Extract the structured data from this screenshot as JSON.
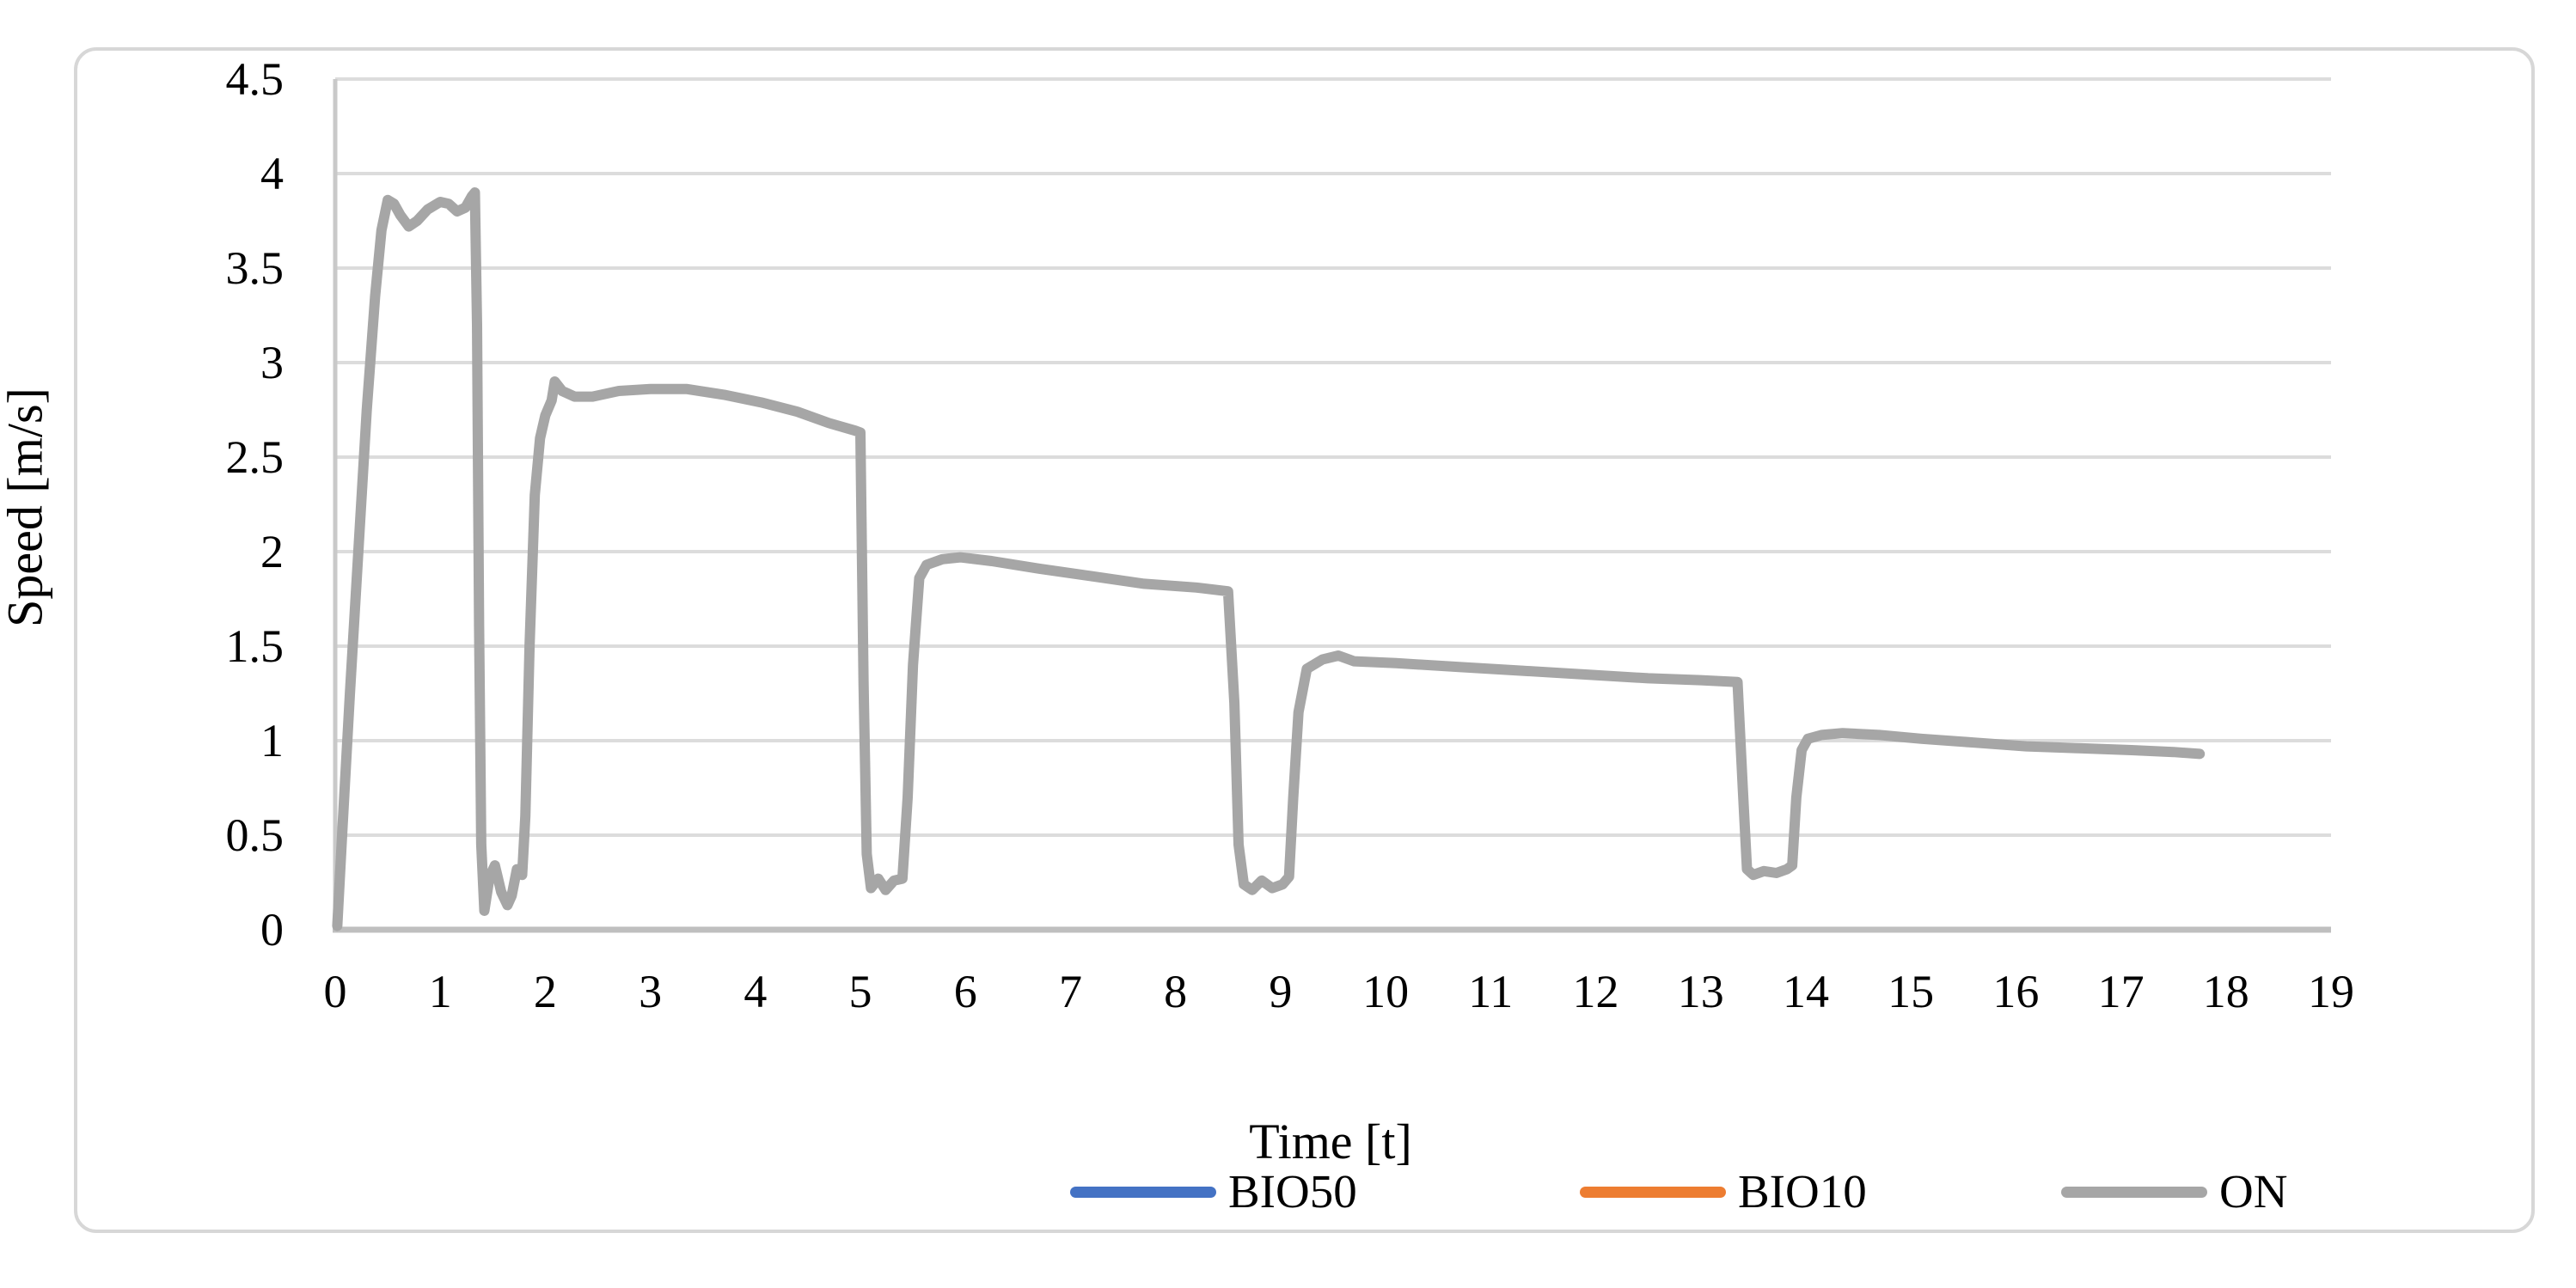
{
  "figure": {
    "background": "#ffffff",
    "border_color": "#d7d7d7"
  },
  "chart_data": {
    "type": "line",
    "title": "",
    "xlabel": "Time [t]",
    "ylabel": "Speed [m/s]",
    "xlim": [
      0,
      19
    ],
    "ylim": [
      0,
      4.5
    ],
    "grid": "horizontal",
    "legend_position": "bottom",
    "x_ticks": [
      "0",
      "1",
      "2",
      "3",
      "4",
      "5",
      "6",
      "7",
      "8",
      "9",
      "10",
      "11",
      "12",
      "13",
      "14",
      "15",
      "16",
      "17",
      "18",
      "19"
    ],
    "y_ticks": [
      "0",
      "0.5",
      "1",
      "1.5",
      "2",
      "2.5",
      "3",
      "3.5",
      "4",
      "4.5"
    ],
    "axis_color": "#bfbfbf",
    "gridline_color": "#dcdcdc",
    "legend": [
      {
        "label": "BIO50",
        "color": "#4472C4"
      },
      {
        "label": "BIO10",
        "color": "#ED7D31"
      },
      {
        "label": "ON",
        "color": "#A6A6A6"
      }
    ],
    "series": [
      {
        "name": "BIO50",
        "color": "#4472C4",
        "points": []
      },
      {
        "name": "BIO10",
        "color": "#ED7D31",
        "points": []
      },
      {
        "name": "ON",
        "color": "#A6A6A6",
        "points": [
          [
            0.02,
            0.02
          ],
          [
            0.07,
            0.55
          ],
          [
            0.14,
            1.25
          ],
          [
            0.22,
            2.0
          ],
          [
            0.3,
            2.75
          ],
          [
            0.38,
            3.35
          ],
          [
            0.44,
            3.7
          ],
          [
            0.5,
            3.86
          ],
          [
            0.56,
            3.84
          ],
          [
            0.62,
            3.78
          ],
          [
            0.7,
            3.72
          ],
          [
            0.78,
            3.75
          ],
          [
            0.88,
            3.81
          ],
          [
            1.0,
            3.85
          ],
          [
            1.08,
            3.84
          ],
          [
            1.16,
            3.8
          ],
          [
            1.24,
            3.82
          ],
          [
            1.3,
            3.88
          ],
          [
            1.33,
            3.9
          ],
          [
            1.35,
            3.2
          ],
          [
            1.37,
            1.6
          ],
          [
            1.39,
            0.45
          ],
          [
            1.42,
            0.1
          ],
          [
            1.47,
            0.28
          ],
          [
            1.52,
            0.34
          ],
          [
            1.58,
            0.2
          ],
          [
            1.64,
            0.13
          ],
          [
            1.68,
            0.18
          ],
          [
            1.73,
            0.32
          ],
          [
            1.78,
            0.29
          ],
          [
            1.81,
            0.6
          ],
          [
            1.85,
            1.5
          ],
          [
            1.9,
            2.3
          ],
          [
            1.95,
            2.6
          ],
          [
            2.0,
            2.72
          ],
          [
            2.06,
            2.8
          ],
          [
            2.09,
            2.9
          ],
          [
            2.16,
            2.85
          ],
          [
            2.28,
            2.82
          ],
          [
            2.45,
            2.82
          ],
          [
            2.7,
            2.85
          ],
          [
            3.0,
            2.86
          ],
          [
            3.35,
            2.86
          ],
          [
            3.7,
            2.83
          ],
          [
            4.05,
            2.79
          ],
          [
            4.4,
            2.74
          ],
          [
            4.7,
            2.68
          ],
          [
            4.95,
            2.64
          ],
          [
            5.0,
            2.63
          ],
          [
            5.03,
            1.3
          ],
          [
            5.06,
            0.4
          ],
          [
            5.1,
            0.22
          ],
          [
            5.17,
            0.27
          ],
          [
            5.24,
            0.21
          ],
          [
            5.32,
            0.26
          ],
          [
            5.4,
            0.27
          ],
          [
            5.45,
            0.7
          ],
          [
            5.5,
            1.4
          ],
          [
            5.56,
            1.86
          ],
          [
            5.63,
            1.93
          ],
          [
            5.78,
            1.96
          ],
          [
            5.95,
            1.97
          ],
          [
            6.25,
            1.95
          ],
          [
            6.7,
            1.91
          ],
          [
            7.2,
            1.87
          ],
          [
            7.7,
            1.83
          ],
          [
            8.2,
            1.81
          ],
          [
            8.5,
            1.79
          ],
          [
            8.56,
            1.2
          ],
          [
            8.6,
            0.45
          ],
          [
            8.65,
            0.24
          ],
          [
            8.73,
            0.21
          ],
          [
            8.82,
            0.26
          ],
          [
            8.92,
            0.22
          ],
          [
            9.02,
            0.24
          ],
          [
            9.08,
            0.28
          ],
          [
            9.12,
            0.7
          ],
          [
            9.17,
            1.15
          ],
          [
            9.25,
            1.38
          ],
          [
            9.4,
            1.43
          ],
          [
            9.55,
            1.45
          ],
          [
            9.7,
            1.42
          ],
          [
            10.1,
            1.41
          ],
          [
            10.7,
            1.39
          ],
          [
            11.3,
            1.37
          ],
          [
            11.9,
            1.35
          ],
          [
            12.5,
            1.33
          ],
          [
            13.0,
            1.32
          ],
          [
            13.35,
            1.31
          ],
          [
            13.4,
            0.75
          ],
          [
            13.44,
            0.32
          ],
          [
            13.5,
            0.29
          ],
          [
            13.6,
            0.31
          ],
          [
            13.72,
            0.3
          ],
          [
            13.82,
            0.32
          ],
          [
            13.87,
            0.34
          ],
          [
            13.91,
            0.7
          ],
          [
            13.96,
            0.95
          ],
          [
            14.02,
            1.01
          ],
          [
            14.15,
            1.03
          ],
          [
            14.35,
            1.04
          ],
          [
            14.7,
            1.03
          ],
          [
            15.1,
            1.01
          ],
          [
            15.6,
            0.99
          ],
          [
            16.1,
            0.97
          ],
          [
            16.6,
            0.96
          ],
          [
            17.1,
            0.95
          ],
          [
            17.5,
            0.94
          ],
          [
            17.75,
            0.93
          ]
        ]
      }
    ]
  }
}
